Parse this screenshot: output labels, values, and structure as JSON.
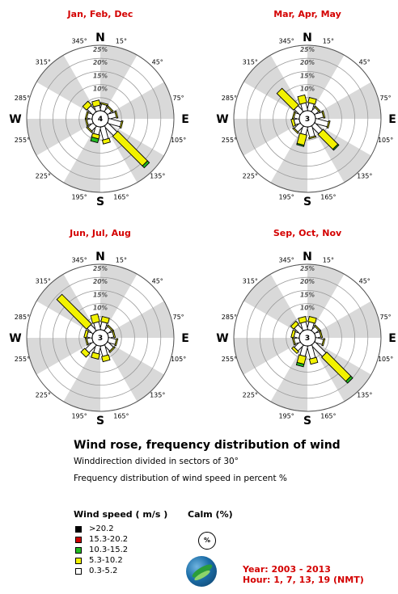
{
  "chart_data": [
    {
      "type": "windrose",
      "title": "Jan, Feb, Dec",
      "calm": "4",
      "directions": [
        15,
        45,
        75,
        105,
        135,
        165,
        195,
        225,
        255,
        285,
        315,
        345
      ],
      "series": [
        {
          "name": "0.3-5.2",
          "values": [
            2.5,
            2,
            3,
            5,
            5,
            5,
            3,
            2.5,
            2,
            2,
            3,
            2
          ]
        },
        {
          "name": "5.3-10.2",
          "values": [
            0.5,
            0.5,
            0.5,
            0.5,
            16,
            1.5,
            1.5,
            0.5,
            0.5,
            0.5,
            2,
            2
          ]
        },
        {
          "name": "10.3-15.2",
          "values": [
            0,
            0,
            0,
            0,
            1,
            0,
            1.5,
            0,
            0,
            0,
            0,
            0
          ]
        },
        {
          "name": "15.3-20.2",
          "values": [
            0,
            0,
            0,
            0,
            0,
            0,
            0,
            0,
            0,
            0,
            0,
            0
          ]
        },
        {
          "name": ">20.2",
          "values": [
            0,
            0,
            0,
            0,
            0,
            0,
            0,
            0,
            0,
            0,
            0,
            0
          ]
        }
      ]
    },
    {
      "type": "windrose",
      "title": "Mar, Apr, May",
      "calm": "3",
      "directions": [
        15,
        45,
        75,
        105,
        135,
        165,
        195,
        225,
        255,
        285,
        315,
        345
      ],
      "series": [
        {
          "name": "0.3-5.2",
          "values": [
            3,
            2,
            3,
            5,
            4,
            4,
            3,
            3,
            2,
            2,
            3,
            3
          ]
        },
        {
          "name": "5.3-10.2",
          "values": [
            2,
            0.5,
            0.5,
            0.5,
            8,
            0.5,
            4,
            0.5,
            1,
            0.5,
            9,
            3
          ]
        },
        {
          "name": "10.3-15.2",
          "values": [
            0,
            0,
            0,
            0,
            0.5,
            0,
            0.5,
            0,
            0,
            0,
            0,
            0
          ]
        },
        {
          "name": "15.3-20.2",
          "values": [
            0,
            0,
            0,
            0,
            0,
            0,
            0,
            0,
            0,
            0,
            0,
            0
          ]
        },
        {
          "name": ">20.2",
          "values": [
            0,
            0,
            0,
            0,
            0,
            0,
            0,
            0,
            0,
            0,
            0,
            0
          ]
        }
      ]
    },
    {
      "type": "windrose",
      "title": "Jun, Jul, Aug",
      "calm": "3",
      "directions": [
        15,
        45,
        75,
        105,
        135,
        165,
        195,
        225,
        255,
        285,
        315,
        345
      ],
      "series": [
        {
          "name": "0.3-5.2",
          "values": [
            3,
            2,
            2,
            3,
            3,
            4,
            3,
            4,
            2,
            2,
            3,
            3
          ]
        },
        {
          "name": "5.3-10.2",
          "values": [
            2,
            0.5,
            0.5,
            0.5,
            0.5,
            2,
            2,
            2,
            0.5,
            1,
            16,
            3
          ]
        },
        {
          "name": "10.3-15.2",
          "values": [
            0,
            0,
            0,
            0,
            0,
            0,
            0,
            0,
            0,
            0,
            0,
            0
          ]
        },
        {
          "name": "15.3-20.2",
          "values": [
            0,
            0,
            0,
            0,
            0,
            0,
            0,
            0,
            0,
            0,
            0,
            0
          ]
        },
        {
          "name": ">20.2",
          "values": [
            0,
            0,
            0,
            0,
            0,
            0,
            0,
            0,
            0,
            0,
            0,
            0
          ]
        }
      ]
    },
    {
      "type": "windrose",
      "title": "Sep, Oct, Nov",
      "calm": "3",
      "directions": [
        15,
        45,
        75,
        105,
        135,
        165,
        195,
        225,
        255,
        285,
        315,
        345
      ],
      "series": [
        {
          "name": "0.3-5.2",
          "values": [
            3,
            2,
            2,
            3,
            6,
            5,
            4,
            3,
            2,
            2,
            3,
            3
          ]
        },
        {
          "name": "5.3-10.2",
          "values": [
            2,
            0.5,
            0.5,
            0.5,
            13,
            2,
            3,
            1,
            0.5,
            1,
            1.5,
            2
          ]
        },
        {
          "name": "10.3-15.2",
          "values": [
            0,
            0,
            0,
            0,
            1,
            0,
            1,
            0,
            0,
            0,
            0,
            0
          ]
        },
        {
          "name": "15.3-20.2",
          "values": [
            0,
            0,
            0,
            0,
            0,
            0,
            0,
            0,
            0,
            0,
            0,
            0
          ]
        },
        {
          "name": ">20.2",
          "values": [
            0,
            0,
            0,
            0,
            0,
            0,
            0,
            0,
            0,
            0,
            0,
            0
          ]
        }
      ]
    }
  ],
  "rose_axis": {
    "ring_labels": [
      "10%",
      "15%",
      "20%",
      "25%"
    ],
    "ring_values": [
      5,
      10,
      15,
      20,
      25
    ],
    "compass": {
      "n": "N",
      "e": "E",
      "s": "S",
      "w": "W"
    },
    "degree_labels": [
      "15°",
      "45°",
      "75°",
      "105°",
      "135°",
      "165°",
      "195°",
      "225°",
      "255°",
      "285°",
      "315°",
      "345°"
    ]
  },
  "info": {
    "title": "Wind rose, frequency distribution of wind",
    "line1": "Winddirection divided in sectors of  30°",
    "line2": "Frequency distribution of wind speed in percent %"
  },
  "legend": {
    "title": "Wind speed ( m/s )",
    "items": [
      {
        "label": ">20.2",
        "color": "#000000"
      },
      {
        "label": "15.3-20.2",
        "color": "#cc0000"
      },
      {
        "label": "10.3-15.2",
        "color": "#22bb22"
      },
      {
        "label": "5.3-10.2",
        "color": "#f2f200"
      },
      {
        "label": "0.3-5.2",
        "color": "#ffffff"
      }
    ]
  },
  "calm": {
    "title": "Calm (%)",
    "symbol": "%"
  },
  "meta": {
    "years": "Year: 2003 - 2013",
    "hours": "Hour: 1, 7, 13, 19 (NMT)"
  },
  "colors": {
    "title_red": "#d40000",
    "sector_shade": "#d9d9d9",
    "ring_line": "#9a9a9a"
  }
}
